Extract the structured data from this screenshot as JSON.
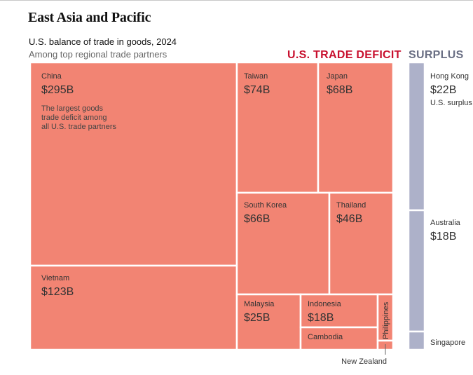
{
  "title": "East Asia and Pacific",
  "subtitle": "U.S. balance of trade in goods, 2024",
  "subnote": "Among top regional trade partners",
  "deficit_label": "U.S. TRADE DEFICIT",
  "surplus_label": "SURPLUS",
  "colors": {
    "deficit": "#f28473",
    "surplus": "#adb1c9",
    "deficit_label": "#c8102e",
    "surplus_label": "#6a6f84"
  },
  "chart_data": {
    "type": "treemap",
    "units": "billion USD",
    "deficit": [
      {
        "name": "China",
        "value": 295,
        "label": "$295B",
        "note": [
          "The largest goods",
          "trade deficit among",
          "all U.S. trade partners"
        ]
      },
      {
        "name": "Vietnam",
        "value": 123,
        "label": "$123B"
      },
      {
        "name": "Taiwan",
        "value": 74,
        "label": "$74B"
      },
      {
        "name": "Japan",
        "value": 68,
        "label": "$68B"
      },
      {
        "name": "South Korea",
        "value": 66,
        "label": "$66B"
      },
      {
        "name": "Thailand",
        "value": 46,
        "label": "$46B"
      },
      {
        "name": "Malaysia",
        "value": 25,
        "label": "$25B"
      },
      {
        "name": "Indonesia",
        "value": 18,
        "label": "$18B"
      },
      {
        "name": "Cambodia",
        "value": 12,
        "label": ""
      },
      {
        "name": "Philippines",
        "value": 5,
        "label": ""
      },
      {
        "name": "New Zealand",
        "value": 1.5,
        "label": ""
      }
    ],
    "surplus": [
      {
        "name": "Hong Kong",
        "value": 22,
        "label": "$22B",
        "note": "U.S. surplus"
      },
      {
        "name": "Australia",
        "value": 18,
        "label": "$18B"
      },
      {
        "name": "Singapore",
        "value": 3,
        "label": ""
      }
    ]
  }
}
